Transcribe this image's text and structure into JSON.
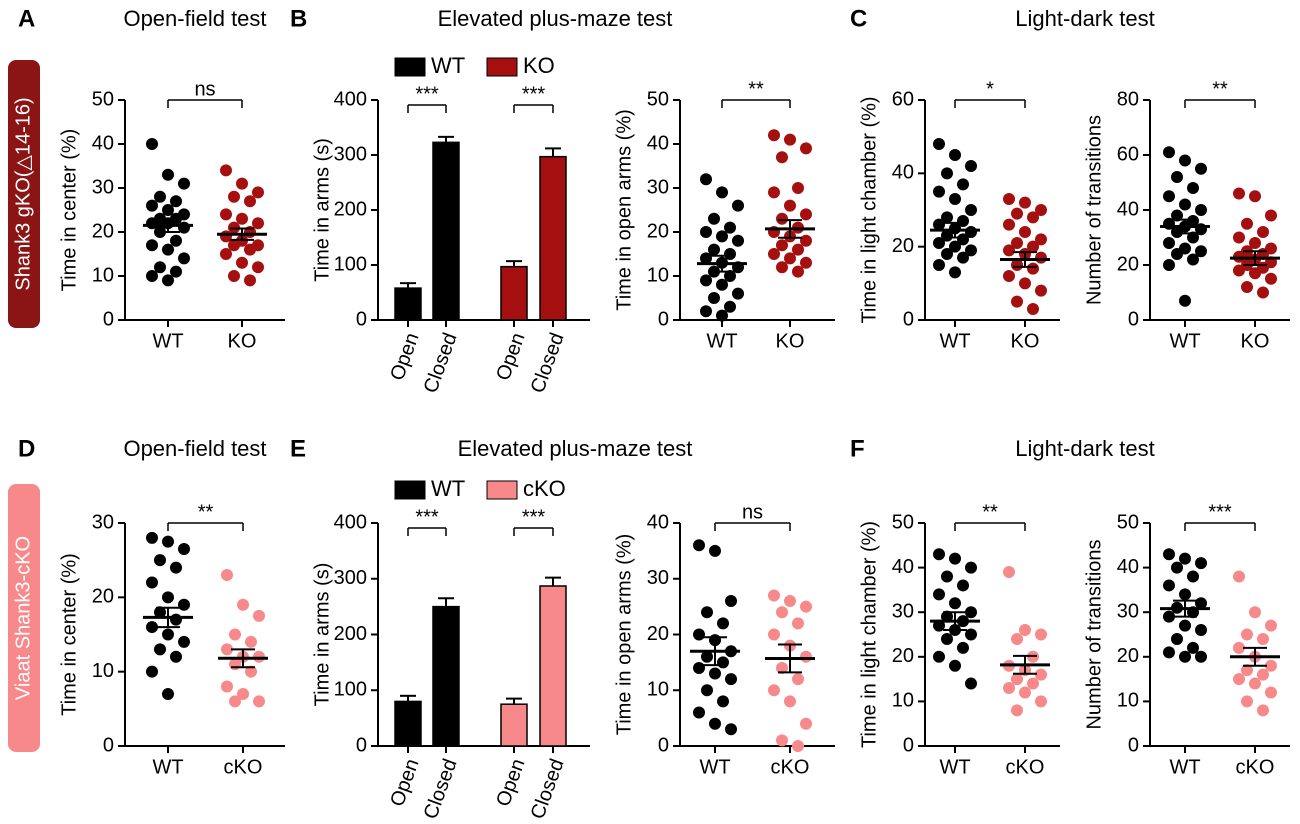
{
  "panels": [
    {
      "letter": "A",
      "title": "Open-field test"
    },
    {
      "letter": "B",
      "title": "Elevated plus-maze test"
    },
    {
      "letter": "C",
      "title": "Light-dark test"
    },
    {
      "letter": "D",
      "title": "Open-field test"
    },
    {
      "letter": "E",
      "title": "Elevated plus-maze test"
    },
    {
      "letter": "F",
      "title": "Light-dark test"
    }
  ],
  "row_labels": [
    "Shank3 gKO(△14-16)",
    "Viaat Shank3-cKO"
  ],
  "chart_data": [
    {
      "type": "strip",
      "ylabel": "Time in center (%)",
      "ylim": [
        0,
        50
      ],
      "yticks": [
        0,
        10,
        20,
        30,
        40,
        50
      ],
      "categories": [
        "WT",
        "KO"
      ],
      "annotation": "ns",
      "groups": [
        {
          "color": "#000000",
          "mean": 21.5,
          "sem": 1.5,
          "values": [
            40,
            33,
            31,
            28,
            27,
            26,
            25,
            24,
            23,
            23,
            22,
            22,
            21,
            20,
            18,
            17,
            16,
            14,
            12,
            11,
            10,
            9
          ]
        },
        {
          "color": "#a50f0f",
          "mean": 19.5,
          "sem": 1.3,
          "values": [
            34,
            31,
            29,
            28,
            27,
            24,
            23,
            22,
            21,
            20,
            19,
            18,
            17,
            17,
            16,
            15,
            13,
            12,
            10,
            9
          ]
        }
      ]
    },
    {
      "type": "bar",
      "ylabel": "Time in arms (s)",
      "ylim": [
        0,
        400
      ],
      "yticks": [
        0,
        100,
        200,
        300,
        400
      ],
      "categories": [
        "Open",
        "Closed"
      ],
      "annotations": [
        "***",
        "***"
      ],
      "series": [
        {
          "name": "WT",
          "color": "#000000",
          "values": [
            58,
            323
          ],
          "errors": [
            9,
            10
          ]
        },
        {
          "name": "KO",
          "color": "#a50f0f",
          "values": [
            97,
            297
          ],
          "errors": [
            10,
            15
          ]
        }
      ]
    },
    {
      "type": "strip",
      "ylabel": "Time in open arms (%)",
      "ylim": [
        0,
        50
      ],
      "yticks": [
        0,
        10,
        20,
        30,
        40,
        50
      ],
      "categories": [
        "WT",
        "KO"
      ],
      "annotation": "**",
      "groups": [
        {
          "color": "#000000",
          "mean": 12.8,
          "sem": 1.8,
          "values": [
            32,
            29,
            26,
            23,
            21,
            20,
            19,
            18,
            16,
            15,
            14,
            13,
            12,
            11,
            10,
            9,
            8,
            6,
            5,
            3,
            2,
            1
          ]
        },
        {
          "color": "#a50f0f",
          "mean": 20.7,
          "sem": 2,
          "values": [
            42,
            41,
            39,
            37,
            30,
            29,
            26,
            24,
            23,
            21,
            20,
            19,
            18,
            17,
            16,
            15,
            14,
            13,
            12,
            11
          ]
        }
      ]
    },
    {
      "type": "strip",
      "ylabel": "Time in light chamber (%)",
      "ylim": [
        0,
        60
      ],
      "yticks": [
        0,
        20,
        40,
        60
      ],
      "categories": [
        "WT",
        "KO"
      ],
      "annotation": "*",
      "groups": [
        {
          "color": "#000000",
          "mean": 24.5,
          "sem": 2,
          "values": [
            48,
            45,
            42,
            40,
            37,
            35,
            33,
            30,
            28,
            27,
            26,
            25,
            24,
            23,
            22,
            21,
            20,
            19,
            18,
            17,
            15,
            13
          ]
        },
        {
          "color": "#a50f0f",
          "mean": 16.5,
          "sem": 2,
          "values": [
            33,
            32,
            30,
            29,
            28,
            26,
            24,
            22,
            21,
            20,
            19,
            18,
            17,
            15,
            14,
            12,
            10,
            8,
            5,
            3
          ]
        }
      ]
    },
    {
      "type": "strip",
      "ylabel": "Number of transitions",
      "ylim": [
        0,
        80
      ],
      "yticks": [
        0,
        20,
        40,
        60,
        80
      ],
      "categories": [
        "WT",
        "KO"
      ],
      "annotation": "**",
      "groups": [
        {
          "color": "#000000",
          "mean": 34,
          "sem": 2.5,
          "values": [
            61,
            58,
            55,
            52,
            48,
            45,
            42,
            40,
            38,
            36,
            35,
            34,
            33,
            32,
            30,
            28,
            26,
            25,
            24,
            22,
            20,
            7
          ]
        },
        {
          "color": "#a50f0f",
          "mean": 22.5,
          "sem": 2.5,
          "values": [
            46,
            45,
            38,
            35,
            32,
            30,
            28,
            26,
            25,
            24,
            23,
            22,
            21,
            20,
            19,
            18,
            17,
            15,
            12,
            10
          ]
        }
      ]
    },
    {
      "type": "strip",
      "ylabel": "Time in center (%)",
      "ylim": [
        0,
        30
      ],
      "yticks": [
        0,
        10,
        20,
        30
      ],
      "categories": [
        "WT",
        "cKO"
      ],
      "annotation": "**",
      "groups": [
        {
          "color": "#000000",
          "mean": 17.3,
          "sem": 1.3,
          "values": [
            28,
            27.5,
            26.5,
            25,
            24,
            22,
            20,
            19,
            18,
            17,
            16,
            15,
            14,
            13,
            12,
            10,
            7
          ]
        },
        {
          "color": "#f7898b",
          "mean": 11.8,
          "sem": 1.2,
          "values": [
            23,
            19,
            17.5,
            15,
            14,
            13,
            12,
            12,
            11,
            10,
            8,
            7,
            6,
            6
          ]
        }
      ]
    },
    {
      "type": "bar",
      "ylabel": "Time in arms (s)",
      "ylim": [
        0,
        400
      ],
      "yticks": [
        0,
        100,
        200,
        300,
        400
      ],
      "categories": [
        "Open",
        "Closed"
      ],
      "annotations": [
        "***",
        "***"
      ],
      "series": [
        {
          "name": "WT",
          "color": "#000000",
          "values": [
            80,
            250
          ],
          "errors": [
            10,
            15
          ]
        },
        {
          "name": "cKO",
          "color": "#f7898b",
          "values": [
            75,
            287
          ],
          "errors": [
            10,
            15
          ]
        }
      ]
    },
    {
      "type": "strip",
      "ylabel": "Time in open arms (%)",
      "ylim": [
        0,
        40
      ],
      "yticks": [
        0,
        10,
        20,
        30,
        40
      ],
      "categories": [
        "WT",
        "cKO"
      ],
      "annotation": "ns",
      "groups": [
        {
          "color": "#000000",
          "mean": 17,
          "sem": 2.5,
          "values": [
            36,
            35,
            26,
            24,
            22,
            20,
            19,
            17,
            16,
            15,
            14,
            13,
            12,
            10,
            8,
            6,
            4,
            3
          ]
        },
        {
          "color": "#f7898b",
          "mean": 15.7,
          "sem": 2.5,
          "values": [
            27,
            26,
            25,
            24,
            22,
            20,
            18,
            16,
            14,
            12,
            10,
            8,
            4,
            1,
            0
          ]
        }
      ]
    },
    {
      "type": "strip",
      "ylabel": "Time in light chamber (%)",
      "ylim": [
        0,
        50
      ],
      "yticks": [
        0,
        10,
        20,
        30,
        40,
        50
      ],
      "categories": [
        "WT",
        "cKO"
      ],
      "annotation": "**",
      "groups": [
        {
          "color": "#000000",
          "mean": 28,
          "sem": 2,
          "values": [
            43,
            42,
            40,
            38,
            36,
            34,
            32,
            30,
            29,
            28,
            27,
            26,
            25,
            24,
            22,
            20,
            18,
            14
          ]
        },
        {
          "color": "#f7898b",
          "mean": 18.2,
          "sem": 2,
          "values": [
            39,
            26,
            25,
            24,
            20,
            18,
            17,
            16,
            15,
            14,
            13,
            12,
            10,
            8
          ]
        }
      ]
    },
    {
      "type": "strip",
      "ylabel": "Number of transitions",
      "ylim": [
        0,
        50
      ],
      "yticks": [
        0,
        10,
        20,
        30,
        40,
        50
      ],
      "categories": [
        "WT",
        "cKO"
      ],
      "annotation": "***",
      "groups": [
        {
          "color": "#000000",
          "mean": 30.8,
          "sem": 1.8,
          "values": [
            43,
            42,
            41,
            40,
            38,
            36,
            34,
            32,
            31,
            30,
            29,
            27,
            26,
            24,
            22,
            21,
            20,
            20
          ]
        },
        {
          "color": "#f7898b",
          "mean": 20,
          "sem": 2,
          "values": [
            38,
            30,
            27,
            25,
            24,
            22,
            20,
            18,
            17,
            16,
            15,
            14,
            12,
            10,
            8
          ]
        }
      ]
    }
  ]
}
